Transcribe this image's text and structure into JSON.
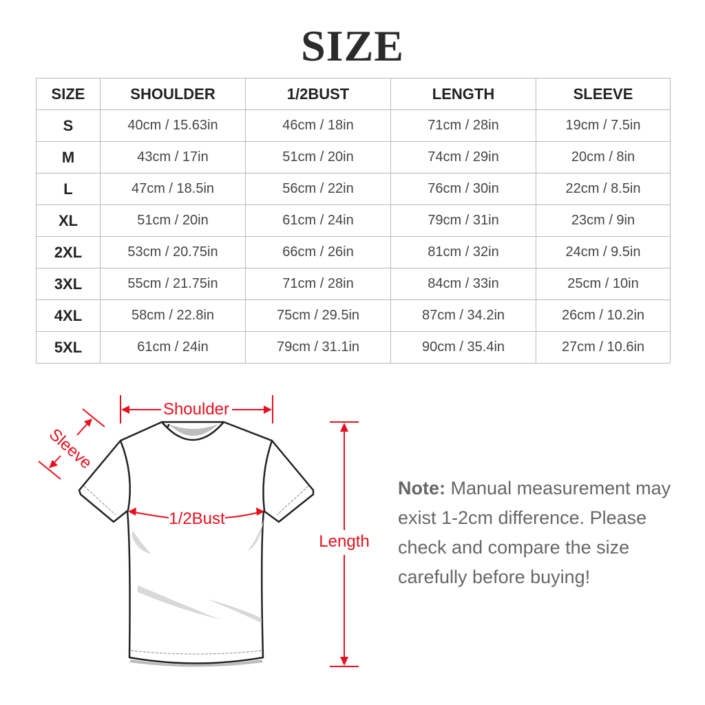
{
  "title": "SIZE",
  "table": {
    "headers": [
      "SIZE",
      "SHOULDER",
      "1/2BUST",
      "LENGTH",
      "SLEEVE"
    ],
    "rows": [
      [
        "S",
        "40cm / 15.63in",
        "46cm / 18in",
        "71cm / 28in",
        "19cm / 7.5in"
      ],
      [
        "M",
        "43cm / 17in",
        "51cm / 20in",
        "74cm / 29in",
        "20cm / 8in"
      ],
      [
        "L",
        "47cm / 18.5in",
        "56cm / 22in",
        "76cm / 30in",
        "22cm / 8.5in"
      ],
      [
        "XL",
        "51cm / 20in",
        "61cm / 24in",
        "79cm / 31in",
        "23cm / 9in"
      ],
      [
        "2XL",
        "53cm / 20.75in",
        "66cm / 26in",
        "81cm / 32in",
        "24cm / 9.5in"
      ],
      [
        "3XL",
        "55cm / 21.75in",
        "71cm / 28in",
        "84cm / 33in",
        "25cm / 10in"
      ],
      [
        "4XL",
        "58cm / 22.8in",
        "75cm / 29.5in",
        "87cm / 34.2in",
        "26cm / 10.2in"
      ],
      [
        "5XL",
        "61cm / 24in",
        "79cm / 31.1in",
        "90cm / 35.4in",
        "27cm / 10.6in"
      ]
    ]
  },
  "diagram": {
    "shoulder_label": "Shoulder",
    "sleeve_label": "Sleeve",
    "bust_label": "1/2Bust",
    "length_label": "Length",
    "accent_color": "#e8101e"
  },
  "note": {
    "label": "Note:",
    "text": "Manual measurement may exist 1-2cm difference. Please check and compare the size carefully before buying!"
  }
}
